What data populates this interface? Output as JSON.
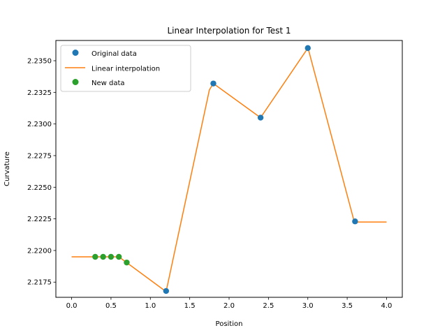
{
  "chart_data": {
    "type": "line",
    "title": "Linear Interpolation for Test 1",
    "xlabel": "Position",
    "ylabel": "Curvature",
    "xlim": [
      -0.2,
      4.2
    ],
    "ylim": [
      2.2163,
      2.2366
    ],
    "xticks": [
      0.0,
      0.5,
      1.0,
      1.5,
      2.0,
      2.5,
      3.0,
      3.5,
      4.0
    ],
    "xtick_labels": [
      "0.0",
      "0.5",
      "1.0",
      "1.5",
      "2.0",
      "2.5",
      "3.0",
      "3.5",
      "4.0"
    ],
    "yticks": [
      2.2175,
      2.22,
      2.2225,
      2.225,
      2.2275,
      2.23,
      2.2325,
      2.235
    ],
    "ytick_labels": [
      "2.2175",
      "2.2200",
      "2.2225",
      "2.2250",
      "2.2275",
      "2.2300",
      "2.2325",
      "2.2350"
    ],
    "grid": false,
    "legend_position": "top-left",
    "series": [
      {
        "name": "Original data",
        "kind": "scatter",
        "color": "#1f77b4",
        "x": [
          1.2,
          1.8,
          2.4,
          3.0,
          3.6
        ],
        "y": [
          2.2168,
          2.2332,
          2.2305,
          2.236,
          2.2223
        ]
      },
      {
        "name": "Linear interpolation",
        "kind": "line",
        "color": "#ff7f0e",
        "x": [
          0.0,
          0.6,
          1.2,
          1.75,
          1.8,
          2.4,
          2.99,
          3.0,
          3.02,
          3.58,
          3.6,
          4.0
        ],
        "y": [
          2.2195,
          2.2195,
          2.21675,
          2.2327,
          2.2332,
          2.2305,
          2.2359,
          2.236,
          2.2356,
          2.2225,
          2.22225,
          2.22225
        ]
      },
      {
        "name": "New data",
        "kind": "scatter",
        "color": "#2ca02c",
        "x": [
          0.3,
          0.4,
          0.5,
          0.6,
          0.7
        ],
        "y": [
          2.2195,
          2.2195,
          2.2195,
          2.2195,
          2.21905
        ]
      }
    ]
  }
}
